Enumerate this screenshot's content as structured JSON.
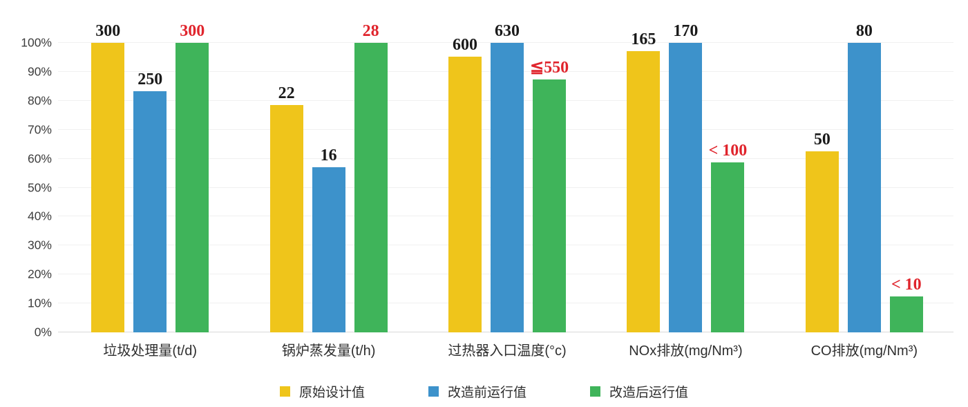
{
  "chart_data": {
    "type": "bar",
    "title": "",
    "categories": [
      "垃圾处理量(t/d)",
      "锅炉蒸发量(t/h)",
      "过热器入口温度(°c)",
      "NOx排放(mg/Nm³)",
      "CO排放(mg/Nm³)"
    ],
    "y_axis": {
      "ticks": [
        "0%",
        "10%",
        "20%",
        "30%",
        "40%",
        "50%",
        "60%",
        "70%",
        "80%",
        "90%",
        "100%"
      ],
      "range": [
        0,
        100
      ],
      "grid": true
    },
    "normalization": "bar height = value / max(value in category) × 100%",
    "series": [
      {
        "name": "原始设计值",
        "color": "#EFC51B",
        "label_color": "#1a1a1a",
        "values": [
          300,
          22,
          600,
          165,
          50
        ],
        "value_labels": [
          "300",
          "22",
          "600",
          "165",
          "50"
        ],
        "heights_pct": [
          100,
          78.57,
          95.24,
          97.06,
          62.5
        ]
      },
      {
        "name": "改造前运行值",
        "color": "#3D92CB",
        "label_color": "#1a1a1a",
        "values": [
          250,
          16,
          630,
          170,
          80
        ],
        "value_labels": [
          "250",
          "16",
          "630",
          "170",
          "80"
        ],
        "heights_pct": [
          83.33,
          57.14,
          100,
          100,
          100
        ]
      },
      {
        "name": "改造后运行值",
        "color": "#3FB45A",
        "label_color": "#E0242C",
        "values": [
          300,
          28,
          550,
          100,
          10
        ],
        "value_labels": [
          "300",
          "28",
          "≦550",
          "< 100",
          "< 10"
        ],
        "heights_pct": [
          100,
          100,
          87.3,
          58.82,
          12.5
        ]
      }
    ],
    "legend_position": "bottom-center"
  }
}
